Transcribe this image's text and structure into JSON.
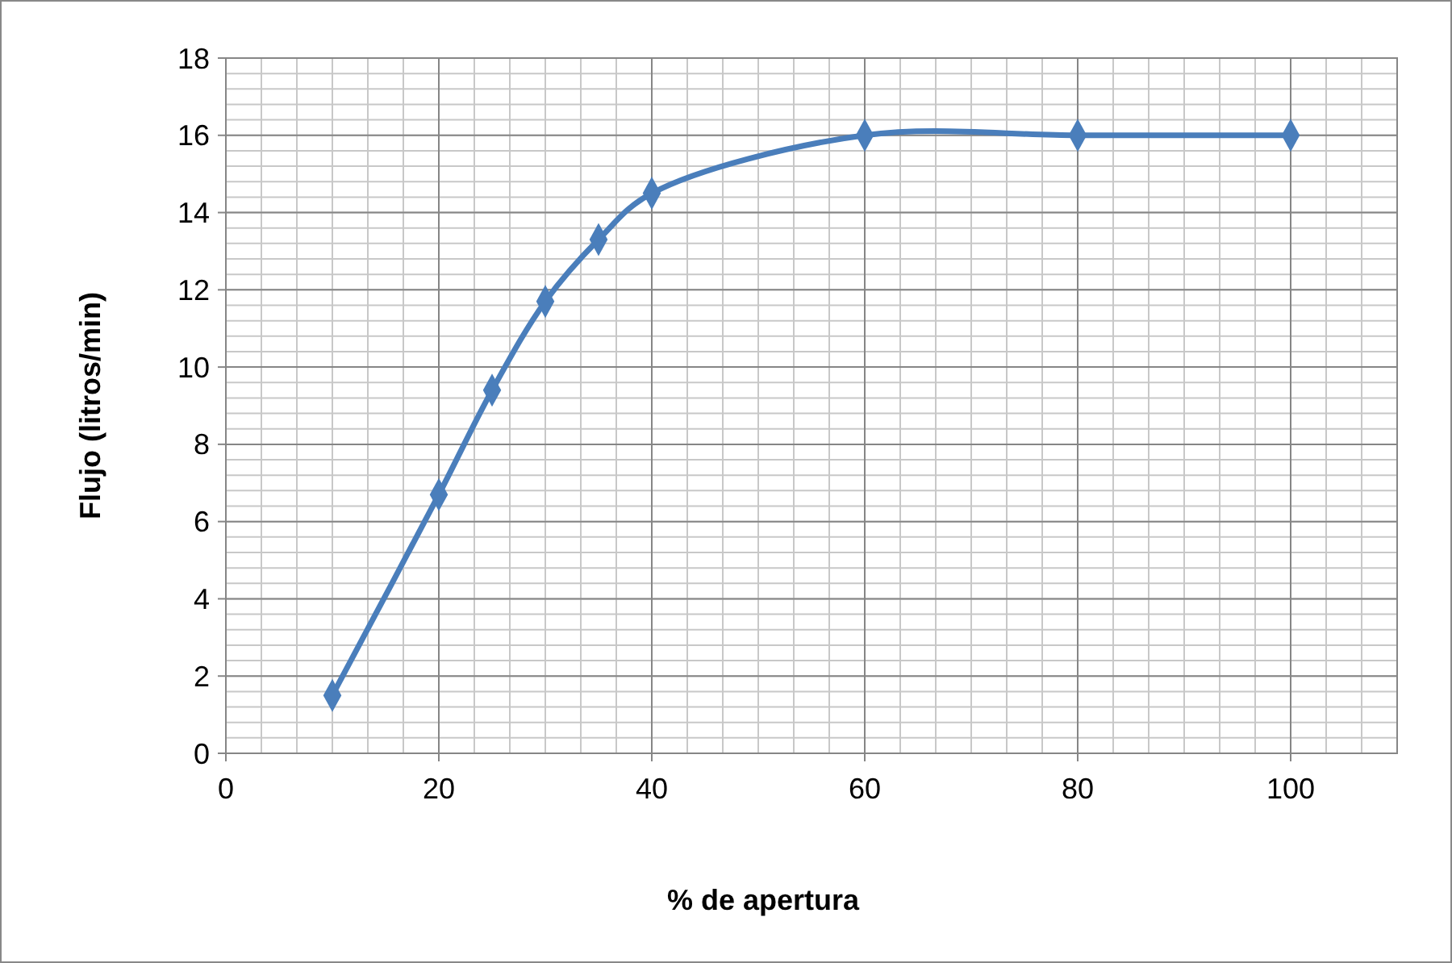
{
  "chart_data": {
    "type": "line",
    "xlabel": "% de apertura",
    "ylabel": "Flujo (litros/min)",
    "x": [
      10,
      20,
      25,
      30,
      35,
      40,
      60,
      80,
      100
    ],
    "series": [
      {
        "color": "#4a7ebb",
        "values": [
          1.5,
          6.7,
          9.4,
          11.7,
          13.3,
          14.5,
          16,
          16,
          16
        ]
      }
    ],
    "xlim": [
      0,
      110
    ],
    "xticks": [
      0,
      20,
      40,
      60,
      80,
      100
    ],
    "ylim": [
      0,
      18
    ],
    "yticks": [
      0,
      2,
      4,
      6,
      8,
      10,
      12,
      14,
      16,
      18
    ],
    "grid": true,
    "marker": "diamond",
    "line_style": "solid"
  }
}
